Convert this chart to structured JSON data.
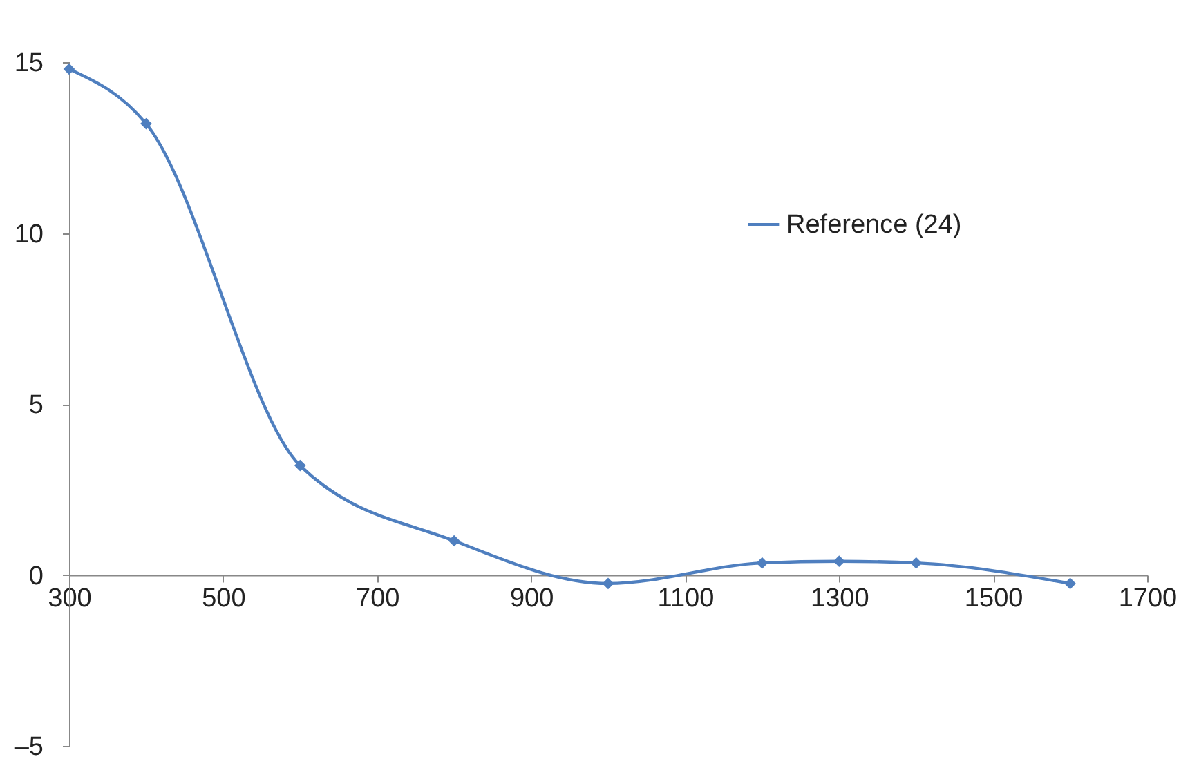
{
  "chart_data": {
    "type": "line",
    "x": [
      300,
      400,
      600,
      800,
      1000,
      1200,
      1300,
      1400,
      1600
    ],
    "series": [
      {
        "name": "Reference (24)",
        "color": "#4f7fbf",
        "values": [
          14.8,
          13.2,
          3.2,
          1.0,
          -0.25,
          0.35,
          0.4,
          0.35,
          -0.25
        ]
      }
    ],
    "xlim": [
      300,
      1700
    ],
    "xticks": [
      300,
      500,
      700,
      900,
      1100,
      1300,
      1500,
      1700
    ],
    "ylim": [
      -5,
      15
    ],
    "yticks": [
      {
        "value": -5,
        "label": "–5"
      },
      0,
      5,
      10,
      15
    ],
    "grid": false,
    "legend": "top right",
    "marker": "diamond",
    "line_style": "solid"
  }
}
